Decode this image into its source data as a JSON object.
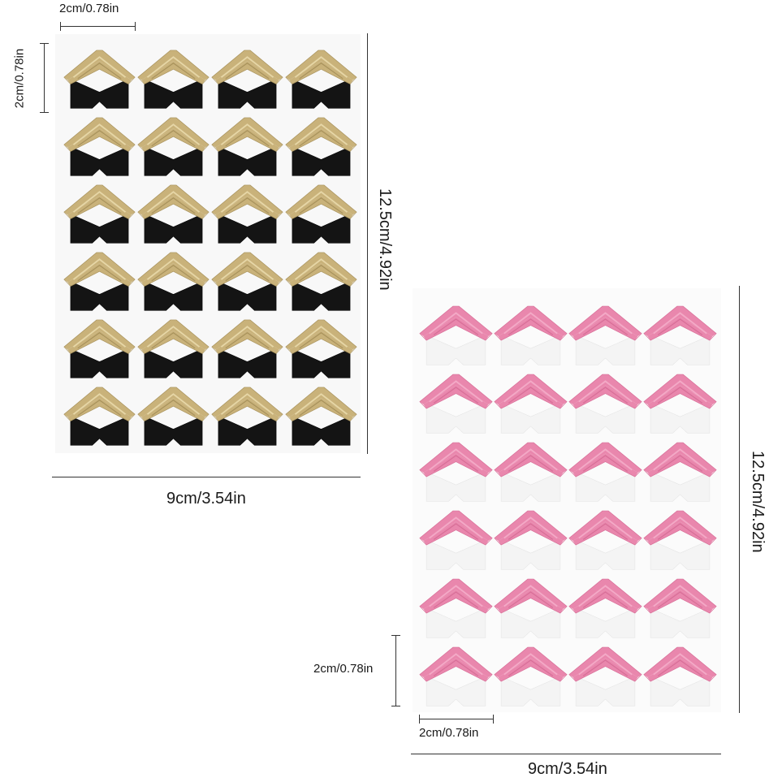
{
  "product": {
    "gold_sheet": {
      "corner_count": 24,
      "top_color": "#c9b27a",
      "bottom_color": "#141414"
    },
    "pink_sheet": {
      "corner_count": 24,
      "top_color": "#e987ad",
      "bottom_color": "#f4f4f4"
    }
  },
  "dimensions": {
    "gold": {
      "corner_width": "2cm/0.78in",
      "corner_height": "2cm/0.78in",
      "sheet_height": "12.5cm/4.92in",
      "sheet_width": "9cm/3.54in"
    },
    "pink": {
      "corner_height": "2cm/0.78in",
      "corner_width": "2cm/0.78in",
      "sheet_height": "12.5cm/4.92in",
      "sheet_width": "9cm/3.54in"
    }
  }
}
